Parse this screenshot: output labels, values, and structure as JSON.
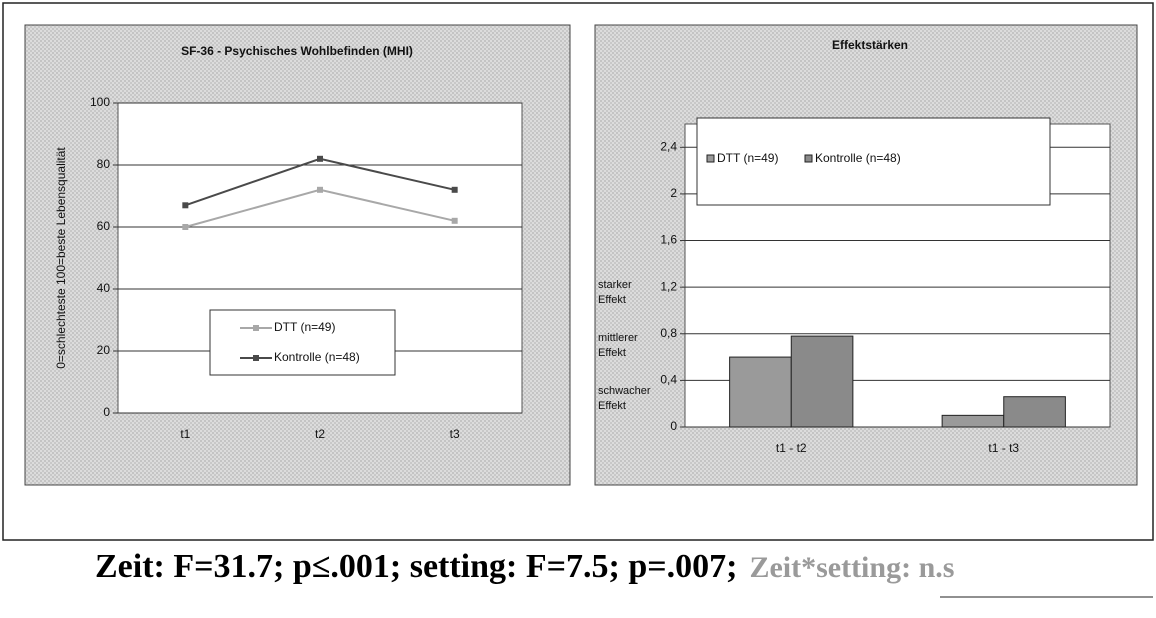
{
  "chart_data": [
    {
      "type": "line",
      "title": "SF-36 - Psychisches Wohlbefinden (MHI)",
      "y_label": "0=schlechteste 100=beste Lebensqualität",
      "categories": [
        "t1",
        "t2",
        "t3"
      ],
      "series": [
        {
          "name": "DTT (n=49)",
          "color": "#a8a8a8",
          "values": [
            60,
            72,
            62
          ]
        },
        {
          "name": "Kontrolle (n=48)",
          "color": "#4a4a4a",
          "values": [
            67,
            82,
            72
          ]
        }
      ],
      "ylim": [
        0,
        100
      ],
      "yticks": [
        0,
        20,
        40,
        60,
        80,
        100
      ],
      "grid": true
    },
    {
      "type": "bar",
      "title": "Effektstärken",
      "categories": [
        "t1 - t2",
        "t1 - t3"
      ],
      "series": [
        {
          "name": "DTT (n=49)",
          "color": "#9a9a9a",
          "values": [
            0.6,
            0.1
          ]
        },
        {
          "name": "Kontrolle (n=48)",
          "color": "#8a8a8a",
          "values": [
            0.78,
            0.26
          ]
        }
      ],
      "ylim": [
        0,
        2.6
      ],
      "yticks": [
        0,
        {
          "value": 0.4,
          "label": "0,4"
        },
        {
          "value": 0.8,
          "label": "0,8"
        },
        {
          "value": 1.2,
          "label": "1,2"
        },
        {
          "value": 1.6,
          "label": "1,6"
        },
        2,
        {
          "value": 2.4,
          "label": "2,4"
        }
      ],
      "grid": true,
      "annotations": [
        "starker Effekt",
        "mittlerer Effekt",
        "schwacher Effekt"
      ]
    }
  ],
  "footer": {
    "main": "Zeit: F=31.7; p≤.001; setting: F=7.5; p=.007;",
    "note": "Zeit*setting: n.s"
  }
}
